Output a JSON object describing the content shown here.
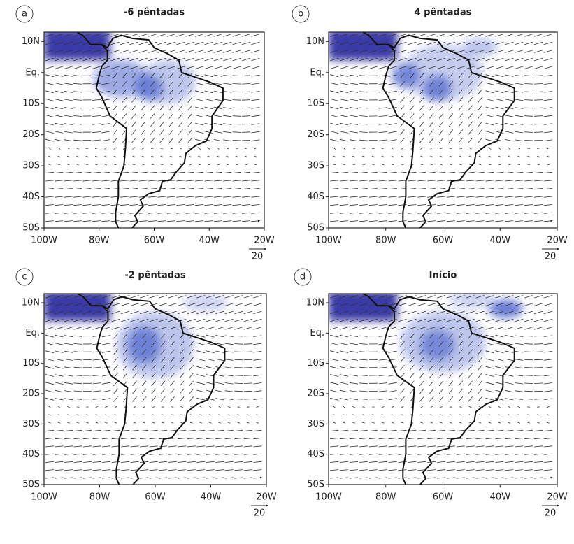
{
  "panels": [
    {
      "letter": "a",
      "title": "-6 pêntadas"
    },
    {
      "letter": "b",
      "title": "4 pêntadas"
    },
    {
      "letter": "c",
      "title": "-2 pêntadas"
    },
    {
      "letter": "d",
      "title": "Início"
    }
  ],
  "lat_labels": [
    "10N",
    "Eq.",
    "10S",
    "20S",
    "30S",
    "40S",
    "50S"
  ],
  "lon_labels": [
    "100W",
    "80W",
    "60W",
    "40W",
    "20W"
  ],
  "reference_vector": "20"
}
